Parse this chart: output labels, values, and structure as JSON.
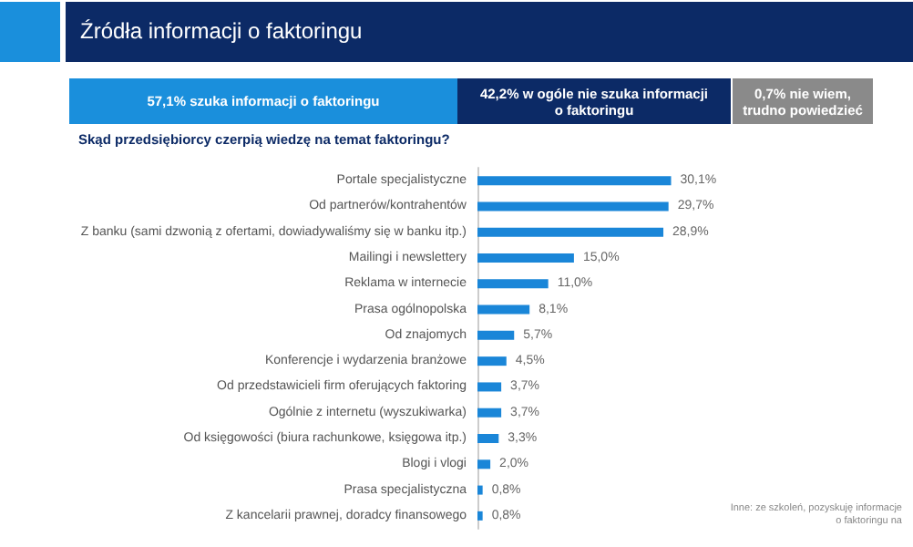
{
  "chart_data": {
    "type": "bar",
    "orientation": "horizontal",
    "title": "Źródła informacji o faktoringu",
    "subtitle": "Skąd przedsiębiorcy czerpią wiedzę na temat faktoringu?",
    "annotations": [
      "57,1% szuka informacji o faktoringu",
      "42,2% w ogóle nie szuka informacji o faktoringu",
      "0,7% nie wiem, trudno powiedzieć",
      "Inne: ze szkoleń, pozyskuję informacje o faktoringu na"
    ],
    "categories": [
      "Portale specjalistyczne",
      "Od partnerów/kontrahentów",
      "Z banku (sami dzwonią z ofertami, dowiadywaliśmy się w banku itp.)",
      "Mailingi i newslettery",
      "Reklama w internecie",
      "Prasa ogólnopolska",
      "Od znajomych",
      "Konferencje i wydarzenia branżowe",
      "Od przedstawicieli firm oferujących faktoring",
      "Ogólnie z internetu (wyszukiwarka)",
      "Od księgowości (biura rachunkowe, księgowa itp.)",
      "Blogi i vlogi",
      "Prasa specjalistyczna",
      "Z kancelarii prawnej, doradcy finansowego"
    ],
    "values": [
      30.1,
      29.7,
      28.9,
      15.0,
      11.0,
      8.1,
      5.7,
      4.5,
      3.7,
      3.7,
      3.3,
      2.0,
      0.8,
      0.8
    ],
    "value_labels": [
      "30,1%",
      "29,7%",
      "28,9%",
      "15,0%",
      "11,0%",
      "8,1%",
      "5,7%",
      "4,5%",
      "3,7%",
      "3,7%",
      "3,3%",
      "2,0%",
      "0,8%",
      "0,8%"
    ],
    "color": "#1a86d8"
  }
}
